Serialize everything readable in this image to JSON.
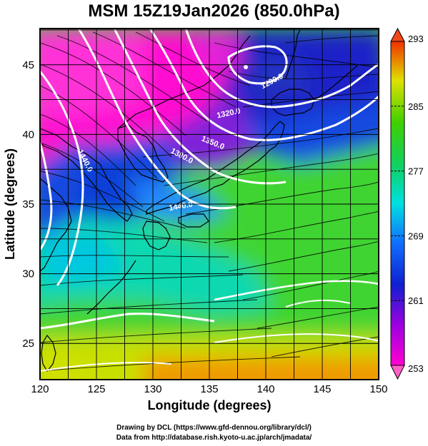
{
  "title": "MSM 15Z19Jan2026 (850.0hPa)",
  "x_axis": {
    "label": "Longitude (degrees)",
    "range": [
      120,
      150
    ],
    "ticks": [
      "120",
      "125",
      "130",
      "135",
      "140",
      "145",
      "150"
    ]
  },
  "y_axis": {
    "label": "Latitude  (degrees)",
    "range": [
      22.4,
      47.6
    ],
    "ticks": [
      "25",
      "30",
      "35",
      "40",
      "45"
    ]
  },
  "colorbar": {
    "min": 253,
    "max": 293,
    "tick_labels": [
      "293",
      "285",
      "277",
      "269",
      "261",
      "253"
    ]
  },
  "contours": {
    "color": "#ffffff",
    "labels": [
      "1290.0",
      "1320.0",
      "1350.0",
      "1380.0",
      "1410.0",
      "1440.0"
    ]
  },
  "credits": {
    "line1": "Drawing by DCL (https://www.gfd-dennou.org/library/dcl/)",
    "line2": "Data from http://database.rish.kyoto-u.ac.jp/arch/jmadata/"
  },
  "colors": {
    "cold": "#ff00c8",
    "cool": "#2030d0",
    "mid": "#00e8d8",
    "warm": "#60dc20",
    "hot": "#f0a000",
    "coastline": "#000000"
  }
}
